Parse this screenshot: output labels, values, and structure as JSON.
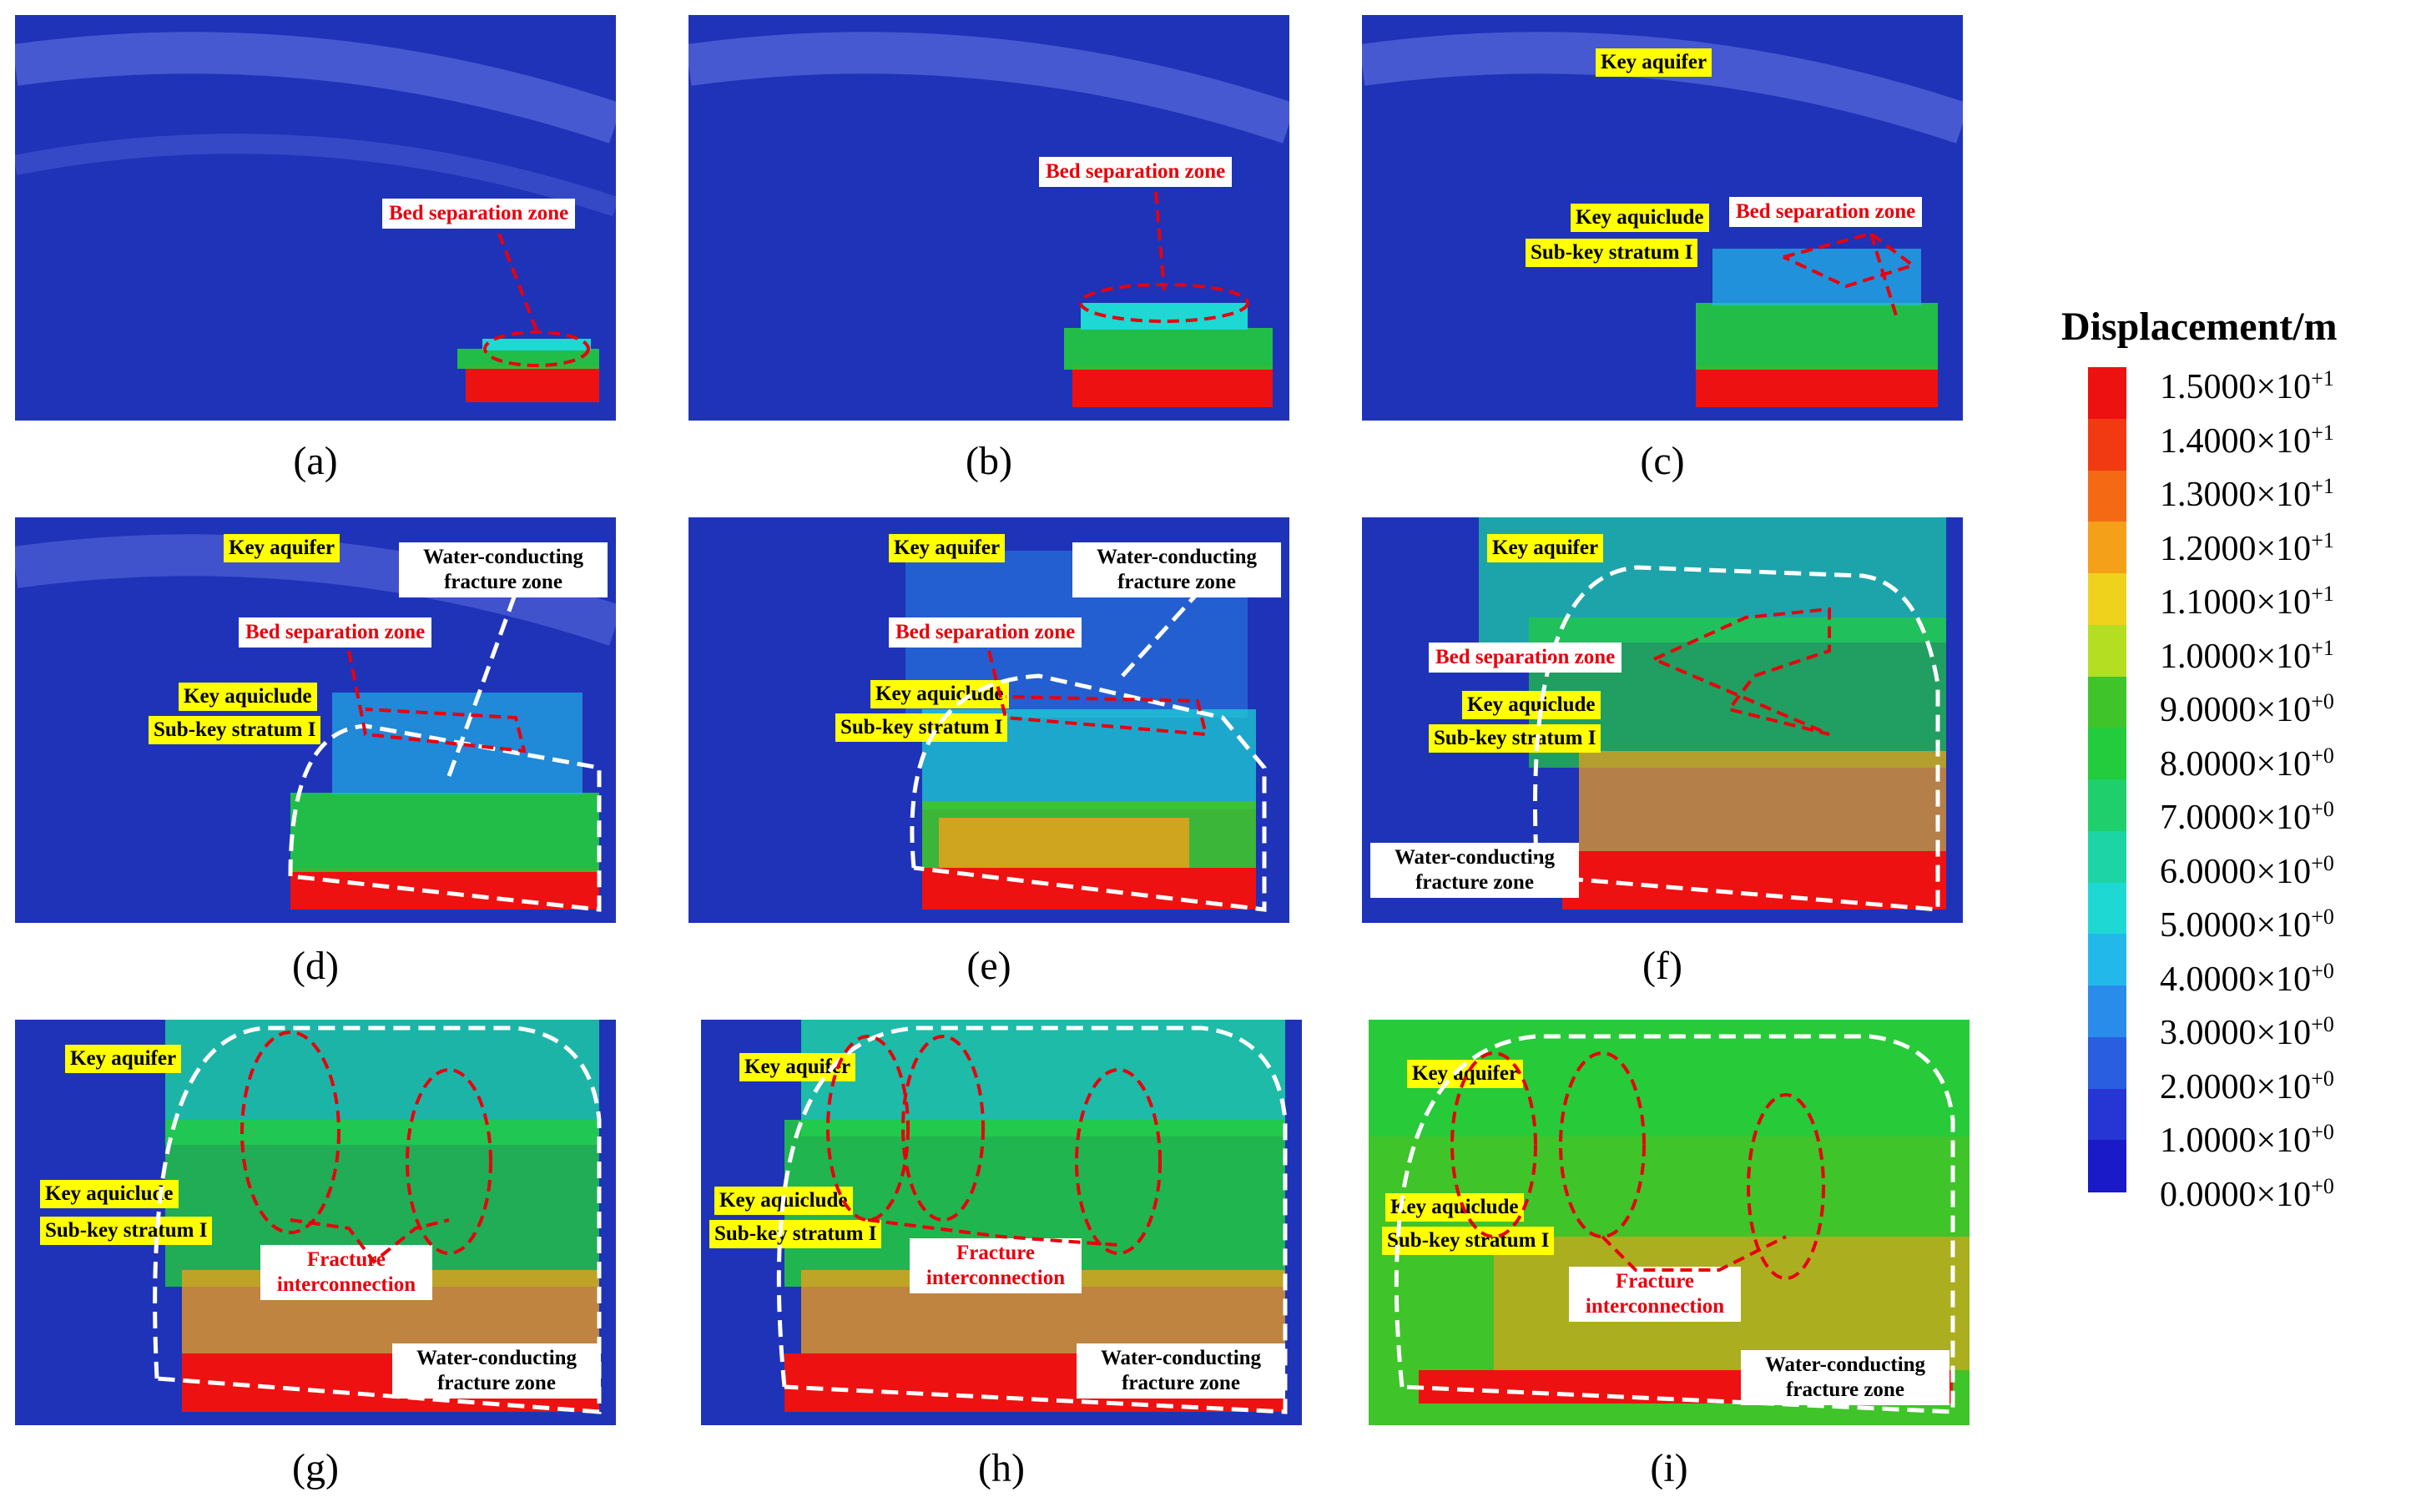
{
  "panels": [
    {
      "id": "a",
      "caption": "(a)",
      "labels": {
        "bed": "Bed separation zone"
      }
    },
    {
      "id": "b",
      "caption": "(b)",
      "labels": {
        "bed": "Bed separation zone"
      }
    },
    {
      "id": "c",
      "caption": "(c)",
      "labels": {
        "aquifer": "Key aquifer",
        "aquiclude": "Key aquiclude",
        "subkey": "Sub-key stratum I",
        "bed": "Bed separation zone"
      }
    },
    {
      "id": "d",
      "caption": "(d)",
      "labels": {
        "aquifer": "Key aquifer",
        "wcfz": "Water-conducting fracture zone",
        "bed": "Bed separation zone",
        "aquiclude": "Key aquiclude",
        "subkey": "Sub-key stratum I"
      }
    },
    {
      "id": "e",
      "caption": "(e)",
      "labels": {
        "aquifer": "Key aquifer",
        "wcfz": "Water-conducting fracture zone",
        "bed": "Bed separation zone",
        "aquiclude": "Key aquiclude",
        "subkey": "Sub-key stratum I"
      }
    },
    {
      "id": "f",
      "caption": "(f)",
      "labels": {
        "aquifer": "Key aquifer",
        "bed": "Bed separation zone",
        "aquiclude": "Key aquiclude",
        "subkey": "Sub-key stratum I",
        "wcfz": "Water-conducting fracture zone"
      }
    },
    {
      "id": "g",
      "caption": "(g)",
      "labels": {
        "aquifer": "Key aquifer",
        "aquiclude": "Key aquiclude",
        "subkey": "Sub-key stratum I",
        "fracture": "Fracture interconnection",
        "wcfz": "Water-conducting fracture zone"
      }
    },
    {
      "id": "h",
      "caption": "(h)",
      "labels": {
        "aquifer": "Key aquifer",
        "aquiclude": "Key aquiclude",
        "subkey": "Sub-key stratum I",
        "fracture": "Fracture interconnection",
        "wcfz": "Water-conducting fracture zone"
      }
    },
    {
      "id": "i",
      "caption": "(i)",
      "labels": {
        "aquifer": "Key aquifer",
        "aquiclude": "Key aquiclude",
        "subkey": "Sub-key stratum I",
        "fracture": "Fracture interconnection",
        "wcfz": "Water-conducting fracture zone"
      }
    }
  ],
  "legend": {
    "title": "Displacement/m",
    "ticks": [
      {
        "mantissa": "1.5000×10",
        "exp": "+1",
        "color": "#ee1111"
      },
      {
        "mantissa": "1.4000×10",
        "exp": "+1",
        "color": "#f23a12"
      },
      {
        "mantissa": "1.3000×10",
        "exp": "+1",
        "color": "#f46a14"
      },
      {
        "mantissa": "1.2000×10",
        "exp": "+1",
        "color": "#f4a018"
      },
      {
        "mantissa": "1.1000×10",
        "exp": "+1",
        "color": "#efd21c"
      },
      {
        "mantissa": "1.0000×10",
        "exp": "+1",
        "color": "#b4de22"
      },
      {
        "mantissa": "9.0000×10",
        "exp": "+0",
        "color": "#3fc42a"
      },
      {
        "mantissa": "8.0000×10",
        "exp": "+0",
        "color": "#22cc3c"
      },
      {
        "mantissa": "7.0000×10",
        "exp": "+0",
        "color": "#1ecf6c"
      },
      {
        "mantissa": "6.0000×10",
        "exp": "+0",
        "color": "#1dd4a4"
      },
      {
        "mantissa": "5.0000×10",
        "exp": "+0",
        "color": "#1ed8d4"
      },
      {
        "mantissa": "4.0000×10",
        "exp": "+0",
        "color": "#22b9ea"
      },
      {
        "mantissa": "3.0000×10",
        "exp": "+0",
        "color": "#2a8cea"
      },
      {
        "mantissa": "2.0000×10",
        "exp": "+0",
        "color": "#2a5ee0"
      },
      {
        "mantissa": "1.0000×10",
        "exp": "+0",
        "color": "#2636d4"
      },
      {
        "mantissa": "0.0000×10",
        "exp": "+0",
        "color": "#1a1ac8"
      }
    ]
  }
}
